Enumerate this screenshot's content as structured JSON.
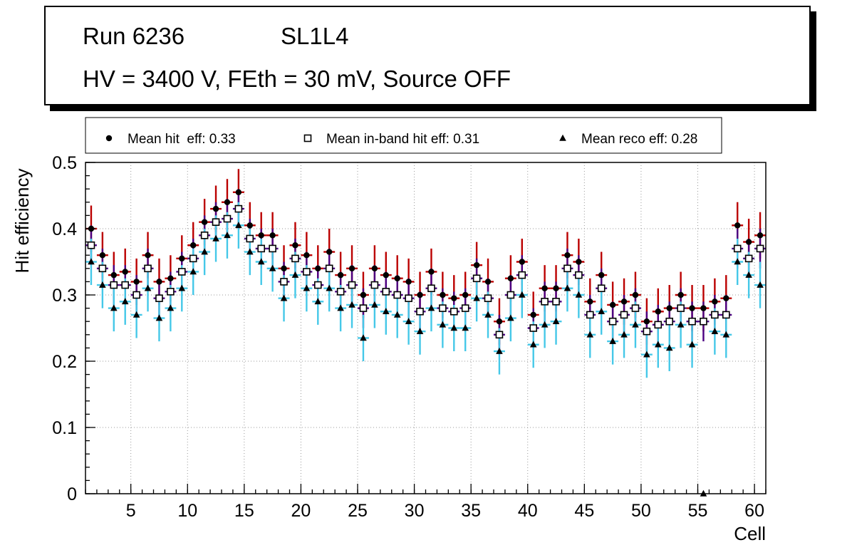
{
  "title_box": {
    "run_label": "Run 6236",
    "chamber_label": "SL1L4",
    "conditions": "HV = 3400 V, FEth = 30 mV, Source OFF"
  },
  "chart_data": {
    "type": "scatter",
    "title": "",
    "xlabel": "Cell",
    "ylabel": "Hit efficiency",
    "xlim": [
      1,
      61
    ],
    "ylim": [
      0,
      0.5
    ],
    "xticks": [
      5,
      10,
      15,
      20,
      25,
      30,
      35,
      40,
      45,
      50,
      55,
      60
    ],
    "yticks": [
      0,
      0.1,
      0.2,
      0.3,
      0.4,
      0.5
    ],
    "grid": true,
    "grid_style": "dotted",
    "legend_position": "top",
    "cells": [
      2,
      3,
      4,
      5,
      6,
      7,
      8,
      9,
      10,
      11,
      12,
      13,
      14,
      15,
      16,
      17,
      18,
      19,
      20,
      21,
      22,
      23,
      24,
      25,
      26,
      27,
      28,
      29,
      30,
      31,
      32,
      33,
      34,
      35,
      36,
      37,
      38,
      39,
      40,
      41,
      42,
      43,
      44,
      45,
      46,
      47,
      48,
      49,
      50,
      51,
      52,
      53,
      54,
      55,
      56,
      57,
      58,
      59,
      60,
      61
    ],
    "series": [
      {
        "name": "Mean hit  eff: 0.33",
        "mean": 0.33,
        "marker": "filled-circle",
        "marker_color": "#000000",
        "error_color": "#bb0000",
        "xerr": 0.5,
        "yerr": 0.035,
        "values": [
          0.4,
          0.36,
          0.33,
          0.335,
          0.32,
          0.36,
          0.32,
          0.325,
          0.355,
          0.375,
          0.41,
          0.43,
          0.44,
          0.455,
          0.405,
          0.39,
          0.39,
          0.34,
          0.375,
          0.36,
          0.34,
          0.365,
          0.33,
          0.34,
          0.3,
          0.34,
          0.33,
          0.325,
          0.32,
          0.3,
          0.335,
          0.3,
          0.295,
          0.3,
          0.345,
          0.32,
          0.26,
          0.325,
          0.35,
          0.27,
          0.31,
          0.31,
          0.36,
          0.35,
          0.29,
          0.33,
          0.285,
          0.29,
          0.3,
          0.26,
          0.275,
          0.28,
          0.3,
          0.28,
          0.28,
          0.29,
          0.295,
          0.405,
          0.38,
          0.39
        ]
      },
      {
        "name": "Mean in-band hit eff: 0.31",
        "mean": 0.31,
        "marker": "open-square",
        "marker_color": "#000000",
        "error_color": "#4b0082",
        "xerr": 0.5,
        "yerr": 0.03,
        "values": [
          0.375,
          0.34,
          0.315,
          0.315,
          0.3,
          0.34,
          0.295,
          0.305,
          0.335,
          0.355,
          0.39,
          0.41,
          0.415,
          0.43,
          0.385,
          0.37,
          0.37,
          0.32,
          0.355,
          0.335,
          0.315,
          0.34,
          0.305,
          0.315,
          0.28,
          0.315,
          0.305,
          0.3,
          0.295,
          0.275,
          0.31,
          0.28,
          0.275,
          0.28,
          0.325,
          0.295,
          0.24,
          0.3,
          0.33,
          0.25,
          0.29,
          0.29,
          0.34,
          0.33,
          0.27,
          0.31,
          0.26,
          0.27,
          0.28,
          0.245,
          0.255,
          0.26,
          0.28,
          0.26,
          0.26,
          0.27,
          0.27,
          0.37,
          0.355,
          0.37
        ]
      },
      {
        "name": "Mean reco eff: 0.28",
        "mean": 0.28,
        "marker": "filled-triangle",
        "marker_color": "#000000",
        "error_color": "#45c8e8",
        "xerr": 0.5,
        "yerr": 0.035,
        "values": [
          0.35,
          0.315,
          0.28,
          0.29,
          0.27,
          0.31,
          0.265,
          0.28,
          0.31,
          0.335,
          0.365,
          0.385,
          0.39,
          0.405,
          0.365,
          0.35,
          0.34,
          0.295,
          0.33,
          0.31,
          0.29,
          0.31,
          0.28,
          0.285,
          0.235,
          0.285,
          0.275,
          0.27,
          0.26,
          0.245,
          0.28,
          0.255,
          0.25,
          0.25,
          0.295,
          0.27,
          0.215,
          0.265,
          0.3,
          0.225,
          0.255,
          0.26,
          0.31,
          0.3,
          0.24,
          0.275,
          0.23,
          0.24,
          0.255,
          0.21,
          0.225,
          0.22,
          0.255,
          0.225,
          0.0,
          0.245,
          0.24,
          0.35,
          0.33,
          0.315
        ]
      }
    ]
  }
}
